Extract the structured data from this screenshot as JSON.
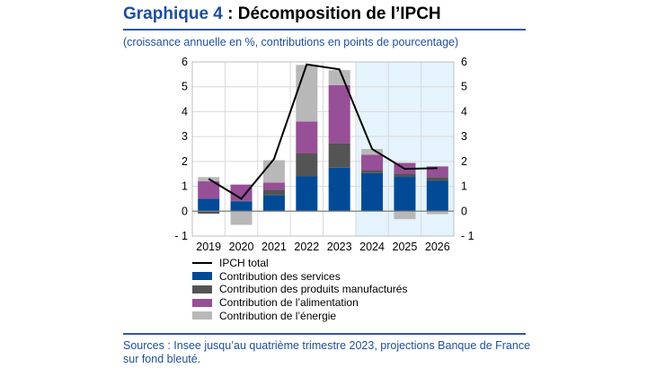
{
  "title_number": "Graphique 4",
  "title_text": " : Décomposition de l’IPCH",
  "subtitle": "(croissance annuelle en %, contributions en points de pourcentage)",
  "sources": "Sources : Insee jusqu’au quatrième trimestre 2023, projections Banque de France sur fond bleuté.",
  "chart_data": {
    "type": "bar",
    "stacked": true,
    "categories": [
      "2019",
      "2020",
      "2021",
      "2022",
      "2023",
      "2024",
      "2025",
      "2026"
    ],
    "ylim": [
      -1,
      6
    ],
    "yticks": [
      "- 1",
      "0",
      "1",
      "2",
      "3",
      "4",
      "5",
      "6"
    ],
    "grid": true,
    "projection_shaded_categories": [
      "2024",
      "2025",
      "2026"
    ],
    "projection_shade_color": "#e5f3fc",
    "series": [
      {
        "name": "Contribution des services",
        "color": "#034a96",
        "values": [
          0.5,
          0.4,
          0.65,
          1.4,
          1.75,
          1.53,
          1.38,
          1.22
        ]
      },
      {
        "name": "Contribution des produits manufacturés",
        "color": "#545454",
        "values": [
          -0.1,
          0.02,
          0.22,
          0.92,
          0.98,
          0.12,
          0.14,
          0.15
        ]
      },
      {
        "name": "Contribution de l’alimentation",
        "color": "#974f97",
        "values": [
          0.7,
          0.65,
          0.28,
          1.28,
          2.34,
          0.62,
          0.42,
          0.43
        ]
      },
      {
        "name": "Contribution de l’énergie",
        "color": "#b8b8b8",
        "values": [
          0.17,
          -0.55,
          0.9,
          2.28,
          0.6,
          0.23,
          -0.32,
          -0.12
        ]
      }
    ],
    "line": {
      "name": "IPCH total",
      "color": "#000000",
      "values": [
        1.3,
        0.5,
        2.1,
        5.9,
        5.7,
        2.5,
        1.7,
        1.73
      ]
    },
    "legend_placement": "bottom"
  }
}
